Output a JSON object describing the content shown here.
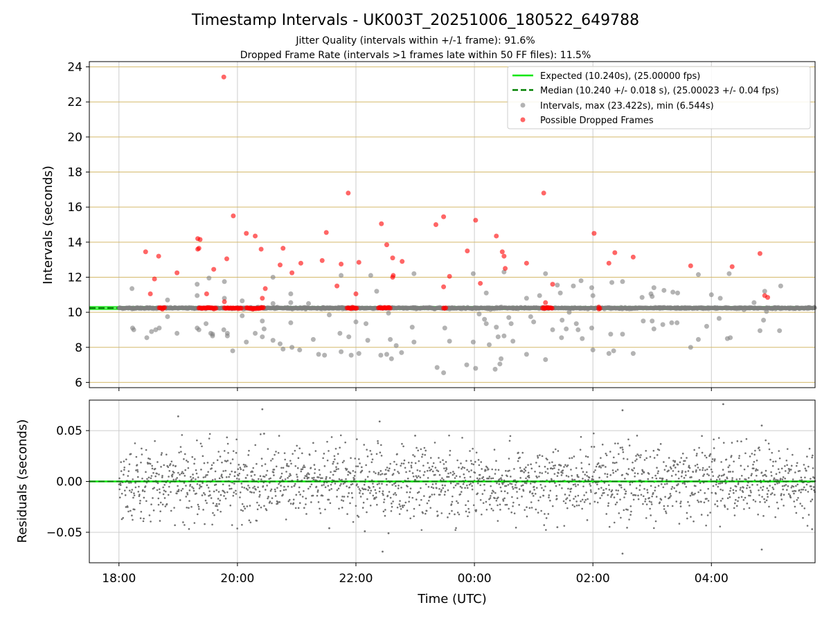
{
  "chart_data": [
    {
      "type": "scatter",
      "title": "Timestamp Intervals - UK003T_20251006_180522_649788",
      "subtitle_lines": [
        "Jitter Quality (intervals within +/-1 frame): 91.6%",
        "Dropped Frame Rate (intervals >1 frames late within 50 FF files): 11.5%"
      ],
      "ylabel": "Intervals (seconds)",
      "ylim": [
        5.7,
        24.3
      ],
      "yticks": [
        6,
        8,
        10,
        12,
        14,
        16,
        18,
        20,
        22,
        24
      ],
      "ytick_labels": [
        "6",
        "8",
        "10",
        "12",
        "14",
        "16",
        "18",
        "20",
        "22",
        "24"
      ],
      "xlim_hours": [
        17.5,
        29.75
      ],
      "expected_line": 10.24,
      "median_line": 10.24,
      "legend": [
        "Expected (10.240s), (25.00000 fps)",
        "Median (10.240 +/- 0.018 s), (25.00023 +/- 0.04 fps)",
        "Intervals, max (23.422s), min (6.544s)",
        "Possible Dropped Frames"
      ],
      "colors": {
        "expected": "#00e600",
        "median": "#008000",
        "intervals": "#808080",
        "dropped": "#ff0000",
        "grid_h": "#d4b96a",
        "grid_v": "#cccccc"
      },
      "series": [
        {
          "name": "Intervals",
          "points": [
            [
              18.22,
              11.35
            ],
            [
              18.23,
              9.1
            ],
            [
              18.25,
              9.0
            ],
            [
              18.47,
              8.55
            ],
            [
              18.55,
              8.9
            ],
            [
              18.62,
              9.0
            ],
            [
              18.68,
              9.1
            ],
            [
              18.82,
              10.7
            ],
            [
              18.82,
              9.75
            ],
            [
              18.98,
              8.8
            ],
            [
              19.32,
              11.6
            ],
            [
              19.32,
              10.95
            ],
            [
              19.32,
              9.1
            ],
            [
              19.35,
              9.0
            ],
            [
              19.47,
              9.35
            ],
            [
              19.52,
              11.95
            ],
            [
              19.55,
              8.8
            ],
            [
              19.58,
              8.75
            ],
            [
              19.58,
              8.65
            ],
            [
              19.77,
              9.0
            ],
            [
              19.78,
              11.75
            ],
            [
              19.78,
              10.8
            ],
            [
              19.83,
              8.8
            ],
            [
              19.83,
              8.65
            ],
            [
              19.92,
              7.8
            ],
            [
              20.08,
              10.65
            ],
            [
              20.08,
              9.8
            ],
            [
              20.15,
              8.3
            ],
            [
              20.3,
              8.8
            ],
            [
              20.42,
              9.5
            ],
            [
              20.42,
              8.6
            ],
            [
              20.45,
              9.05
            ],
            [
              20.6,
              10.5
            ],
            [
              20.6,
              12.0
            ],
            [
              20.6,
              8.4
            ],
            [
              20.72,
              8.2
            ],
            [
              20.77,
              7.9
            ],
            [
              20.9,
              10.55
            ],
            [
              20.9,
              11.05
            ],
            [
              20.9,
              9.4
            ],
            [
              20.92,
              8.0
            ],
            [
              21.05,
              7.85
            ],
            [
              21.2,
              10.5
            ],
            [
              21.28,
              8.45
            ],
            [
              21.37,
              7.6
            ],
            [
              21.47,
              7.55
            ],
            [
              21.55,
              9.85
            ],
            [
              21.73,
              8.8
            ],
            [
              21.75,
              12.1
            ],
            [
              21.75,
              7.75
            ],
            [
              21.88,
              8.6
            ],
            [
              21.92,
              7.55
            ],
            [
              22.0,
              9.45
            ],
            [
              22.05,
              7.65
            ],
            [
              22.17,
              9.35
            ],
            [
              22.2,
              8.4
            ],
            [
              22.25,
              12.1
            ],
            [
              22.35,
              11.2
            ],
            [
              22.42,
              7.55
            ],
            [
              22.52,
              7.6
            ],
            [
              22.55,
              9.95
            ],
            [
              22.58,
              8.45
            ],
            [
              22.6,
              7.35
            ],
            [
              22.68,
              8.1
            ],
            [
              22.77,
              7.7
            ],
            [
              22.95,
              9.15
            ],
            [
              22.98,
              8.3
            ],
            [
              22.98,
              12.2
            ],
            [
              23.37,
              6.85
            ],
            [
              23.48,
              6.55
            ],
            [
              23.5,
              9.1
            ],
            [
              23.58,
              8.35
            ],
            [
              23.87,
              7.0
            ],
            [
              23.98,
              8.3
            ],
            [
              23.98,
              12.2
            ],
            [
              24.02,
              6.8
            ],
            [
              24.08,
              9.9
            ],
            [
              24.17,
              9.6
            ],
            [
              24.2,
              9.35
            ],
            [
              24.2,
              11.1
            ],
            [
              24.25,
              8.15
            ],
            [
              24.35,
              6.75
            ],
            [
              24.37,
              9.15
            ],
            [
              24.4,
              8.6
            ],
            [
              24.43,
              7.05
            ],
            [
              24.45,
              7.35
            ],
            [
              24.5,
              8.65
            ],
            [
              24.5,
              12.3
            ],
            [
              24.58,
              9.7
            ],
            [
              24.62,
              9.35
            ],
            [
              24.65,
              8.35
            ],
            [
              24.88,
              7.6
            ],
            [
              24.88,
              10.8
            ],
            [
              24.95,
              9.75
            ],
            [
              25.0,
              9.45
            ],
            [
              25.1,
              10.95
            ],
            [
              25.2,
              7.3
            ],
            [
              25.2,
              12.2
            ],
            [
              25.32,
              9.0
            ],
            [
              25.4,
              11.55
            ],
            [
              25.45,
              11.1
            ],
            [
              25.47,
              8.55
            ],
            [
              25.48,
              9.55
            ],
            [
              25.55,
              9.05
            ],
            [
              25.6,
              10.0
            ],
            [
              25.67,
              11.5
            ],
            [
              25.72,
              9.35
            ],
            [
              25.75,
              9.0
            ],
            [
              25.8,
              11.8
            ],
            [
              25.82,
              8.5
            ],
            [
              25.98,
              11.4
            ],
            [
              25.98,
              9.1
            ],
            [
              26.0,
              7.85
            ],
            [
              26.0,
              10.95
            ],
            [
              26.27,
              7.65
            ],
            [
              26.3,
              8.75
            ],
            [
              26.32,
              11.7
            ],
            [
              26.35,
              7.8
            ],
            [
              26.5,
              11.75
            ],
            [
              26.5,
              8.75
            ],
            [
              26.68,
              7.65
            ],
            [
              26.83,
              10.85
            ],
            [
              26.85,
              9.5
            ],
            [
              26.98,
              11.05
            ],
            [
              27.0,
              9.5
            ],
            [
              27.0,
              10.9
            ],
            [
              27.03,
              9.05
            ],
            [
              27.03,
              11.4
            ],
            [
              27.18,
              9.3
            ],
            [
              27.2,
              11.25
            ],
            [
              27.33,
              9.4
            ],
            [
              27.35,
              11.15
            ],
            [
              27.42,
              9.4
            ],
            [
              27.43,
              11.1
            ],
            [
              27.65,
              8.0
            ],
            [
              27.78,
              8.45
            ],
            [
              27.78,
              12.15
            ],
            [
              27.92,
              9.2
            ],
            [
              28.0,
              11.0
            ],
            [
              28.13,
              9.65
            ],
            [
              28.15,
              10.8
            ],
            [
              28.27,
              8.5
            ],
            [
              28.32,
              8.55
            ],
            [
              28.3,
              12.2
            ],
            [
              28.55,
              10.15
            ],
            [
              28.72,
              10.55
            ],
            [
              28.82,
              8.95
            ],
            [
              28.88,
              9.55
            ],
            [
              28.9,
              11.2
            ],
            [
              28.93,
              10.05
            ],
            [
              29.15,
              8.95
            ],
            [
              29.17,
              11.5
            ]
          ]
        },
        {
          "name": "Possible Dropped Frames",
          "points": [
            [
              18.45,
              13.45
            ],
            [
              18.53,
              11.05
            ],
            [
              18.6,
              11.9
            ],
            [
              18.67,
              13.2
            ],
            [
              18.98,
              12.25
            ],
            [
              19.33,
              14.2
            ],
            [
              19.37,
              14.15
            ],
            [
              19.35,
              13.65
            ],
            [
              19.33,
              13.6
            ],
            [
              19.48,
              11.05
            ],
            [
              19.6,
              12.45
            ],
            [
              19.77,
              23.42
            ],
            [
              19.82,
              13.05
            ],
            [
              19.78,
              10.6
            ],
            [
              19.93,
              15.5
            ],
            [
              20.15,
              14.5
            ],
            [
              20.3,
              14.35
            ],
            [
              20.4,
              13.6
            ],
            [
              20.42,
              10.8
            ],
            [
              20.47,
              11.35
            ],
            [
              20.72,
              12.7
            ],
            [
              20.77,
              13.65
            ],
            [
              20.92,
              12.25
            ],
            [
              21.07,
              12.8
            ],
            [
              21.43,
              12.95
            ],
            [
              21.5,
              14.55
            ],
            [
              21.68,
              11.5
            ],
            [
              21.75,
              12.75
            ],
            [
              21.87,
              16.8
            ],
            [
              22.0,
              11.05
            ],
            [
              22.05,
              12.85
            ],
            [
              22.43,
              15.05
            ],
            [
              22.52,
              13.85
            ],
            [
              22.62,
              13.1
            ],
            [
              22.62,
              12.0
            ],
            [
              22.63,
              12.1
            ],
            [
              22.78,
              12.9
            ],
            [
              23.35,
              15.0
            ],
            [
              23.48,
              15.45
            ],
            [
              23.48,
              11.45
            ],
            [
              23.58,
              12.05
            ],
            [
              23.88,
              13.5
            ],
            [
              24.02,
              15.25
            ],
            [
              24.1,
              11.65
            ],
            [
              24.37,
              14.35
            ],
            [
              24.47,
              13.45
            ],
            [
              24.5,
              13.2
            ],
            [
              24.52,
              12.5
            ],
            [
              24.88,
              12.8
            ],
            [
              25.17,
              16.8
            ],
            [
              25.32,
              11.6
            ],
            [
              25.2,
              10.55
            ],
            [
              26.02,
              14.5
            ],
            [
              26.1,
              10.3
            ],
            [
              26.27,
              12.8
            ],
            [
              26.37,
              13.4
            ],
            [
              26.68,
              13.15
            ],
            [
              27.65,
              12.65
            ],
            [
              28.35,
              12.6
            ],
            [
              28.82,
              13.35
            ],
            [
              28.9,
              10.95
            ],
            [
              28.95,
              10.85
            ]
          ]
        }
      ]
    },
    {
      "type": "scatter",
      "ylabel": "Residuals (seconds)",
      "xlabel": "Time (UTC)",
      "ylim": [
        -0.08,
        0.08
      ],
      "yticks": [
        -0.05,
        0.0,
        0.05
      ],
      "ytick_labels": [
        "−0.05",
        "0.00",
        "0.05"
      ],
      "xlim_hours": [
        17.5,
        29.75
      ],
      "xticks_hours": [
        18,
        20,
        22,
        24,
        26,
        28
      ],
      "xtick_labels": [
        "18:00",
        "20:00",
        "22:00",
        "00:00",
        "02:00",
        "04:00"
      ],
      "zero_line": 0.0,
      "residual_points": 2000,
      "residual_std": 0.018,
      "outliers": [
        [
          19.0,
          0.064
        ],
        [
          20.42,
          0.071
        ],
        [
          20.45,
          0.047
        ],
        [
          21.55,
          -0.046
        ],
        [
          22.4,
          0.059
        ],
        [
          22.45,
          -0.069
        ],
        [
          22.55,
          -0.051
        ],
        [
          22.15,
          -0.049
        ],
        [
          26.5,
          0.07
        ],
        [
          26.5,
          -0.071
        ],
        [
          28.2,
          0.076
        ],
        [
          28.85,
          0.055
        ],
        [
          28.85,
          -0.067
        ],
        [
          29.7,
          -0.047
        ],
        [
          23.0,
          0.045
        ],
        [
          25.4,
          -0.045
        ]
      ]
    }
  ]
}
